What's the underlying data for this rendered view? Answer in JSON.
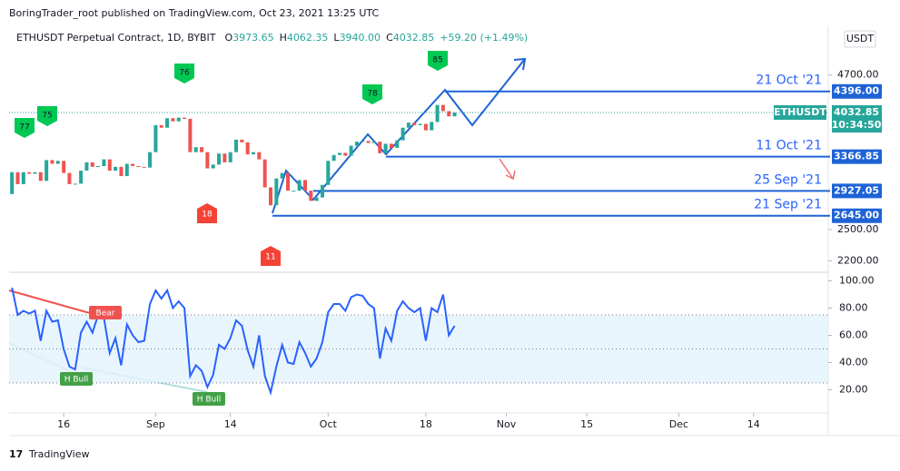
{
  "header": "BoringTrader_root published on TradingView.com, Oct 23, 2021 13:25 UTC",
  "footer": "TradingView",
  "chart_data": {
    "type": "candlestick",
    "symbol": "ETHUSDT Perpetual Contract, 1D, BYBIT",
    "legend_values": [
      {
        "key": "O",
        "text": "3973.65"
      },
      {
        "key": "H",
        "text": "4062.35"
      },
      {
        "key": "L",
        "text": "3940.00"
      },
      {
        "key": "C",
        "text": "4032.85"
      }
    ],
    "change": "+59.20 (+1.49%)",
    "currency": "USDT",
    "ticker": "ETHUSDT",
    "last_price": 4032.85,
    "last_price_label": "4032.85",
    "countdown": "10:34:50",
    "up_color": "#26a69a",
    "down_color": "#ef5350",
    "log_scale": true,
    "xlim": [
      5.5,
      148
    ],
    "xticks": [
      {
        "value": 15,
        "label": "16"
      },
      {
        "value": 31,
        "label": "Sep"
      },
      {
        "value": 44,
        "label": "14"
      },
      {
        "value": 61,
        "label": "Oct"
      },
      {
        "value": 78,
        "label": "18"
      },
      {
        "value": 92,
        "label": "Nov"
      },
      {
        "value": 106,
        "label": "15"
      },
      {
        "value": 122,
        "label": "Dec"
      },
      {
        "value": 135,
        "label": "14"
      }
    ],
    "ylim": [
      2115,
      5715
    ],
    "yticks": [
      {
        "value": 4700,
        "label": "4700.00"
      },
      {
        "value": 2500,
        "label": "2500.00"
      },
      {
        "value": 2200,
        "label": "2200.00"
      }
    ],
    "x": [
      5,
      6,
      7,
      8,
      9,
      10,
      11,
      12,
      13,
      14,
      15,
      16,
      17,
      18,
      19,
      20,
      21,
      22,
      23,
      24,
      25,
      26,
      27,
      28,
      29,
      30,
      31,
      32,
      33,
      34,
      35,
      36,
      37,
      38,
      39,
      40,
      41,
      42,
      43,
      44,
      45,
      46,
      47,
      48,
      49,
      50,
      51,
      52,
      53,
      54,
      55,
      56,
      57,
      58,
      59,
      60,
      61,
      62,
      63,
      64,
      65,
      66,
      67,
      68,
      69,
      70,
      71,
      72,
      73,
      74,
      75,
      76,
      77,
      78,
      79,
      80,
      81,
      82,
      83
    ],
    "close": [
      2890,
      3160,
      3010,
      3160,
      3140,
      3160,
      3050,
      3320,
      3270,
      3310,
      3150,
      3010,
      3015,
      3180,
      3290,
      3230,
      3240,
      3330,
      3180,
      3230,
      3110,
      3270,
      3240,
      3230,
      3220,
      3430,
      3830,
      3790,
      3940,
      3890,
      3950,
      3930,
      3430,
      3500,
      3430,
      3210,
      3260,
      3410,
      3290,
      3430,
      3610,
      3570,
      3400,
      3430,
      3330,
      2970,
      2760,
      3080,
      3150,
      2930,
      2930,
      3060,
      2930,
      2810,
      2850,
      3000,
      3310,
      3390,
      3420,
      3380,
      3520,
      3580,
      3590,
      3560,
      3580,
      3415,
      3550,
      3490,
      3600,
      3790,
      3870,
      3830,
      3850,
      3750,
      3880,
      4160,
      4055,
      3970,
      4032.85
    ],
    "levels": [
      {
        "label": "21 Oct '21",
        "value": 4396,
        "value_label": "4396.00"
      },
      {
        "label": "11 Oct '21",
        "value": 3366.85,
        "value_label": "3366.85"
      },
      {
        "label": "25 Sep '21",
        "value": 2927.05,
        "value_label": "2927.05"
      },
      {
        "label": "21 Sep '21",
        "value": 2645,
        "value_label": "2645.00"
      }
    ],
    "pivots": [
      "77",
      "75",
      "76",
      "78",
      "85",
      "18",
      "11"
    ],
    "oscillator": {
      "color": "#2962ff",
      "ylim": [
        3,
        105
      ],
      "yticks": [
        {
          "value": 100,
          "label": "100.00"
        },
        {
          "value": 80,
          "label": "80.00"
        },
        {
          "value": 60,
          "label": "60.00"
        },
        {
          "value": 40,
          "label": "40.00"
        },
        {
          "value": 20,
          "label": "20.00"
        }
      ],
      "bands": [
        25,
        50,
        75
      ],
      "values": [
        null,
        95,
        75,
        78,
        76,
        78,
        56,
        78,
        70,
        71,
        50,
        37,
        35,
        62,
        70,
        62,
        75,
        73,
        47,
        58,
        38,
        68,
        60,
        55,
        56,
        83,
        93,
        87,
        93,
        80,
        85,
        80,
        30,
        38,
        34,
        22,
        31,
        53,
        50,
        58,
        71,
        67,
        49,
        37,
        60,
        30,
        18,
        37,
        53,
        40,
        39,
        55,
        47,
        37,
        43,
        55,
        77,
        83,
        83,
        78,
        88,
        90,
        89,
        83,
        80,
        43,
        65,
        56,
        78,
        85,
        80,
        77,
        80,
        56,
        80,
        77,
        90,
        60,
        67
      ],
      "annotations": [
        "Bear",
        "H Bull",
        "H Bull"
      ]
    }
  }
}
